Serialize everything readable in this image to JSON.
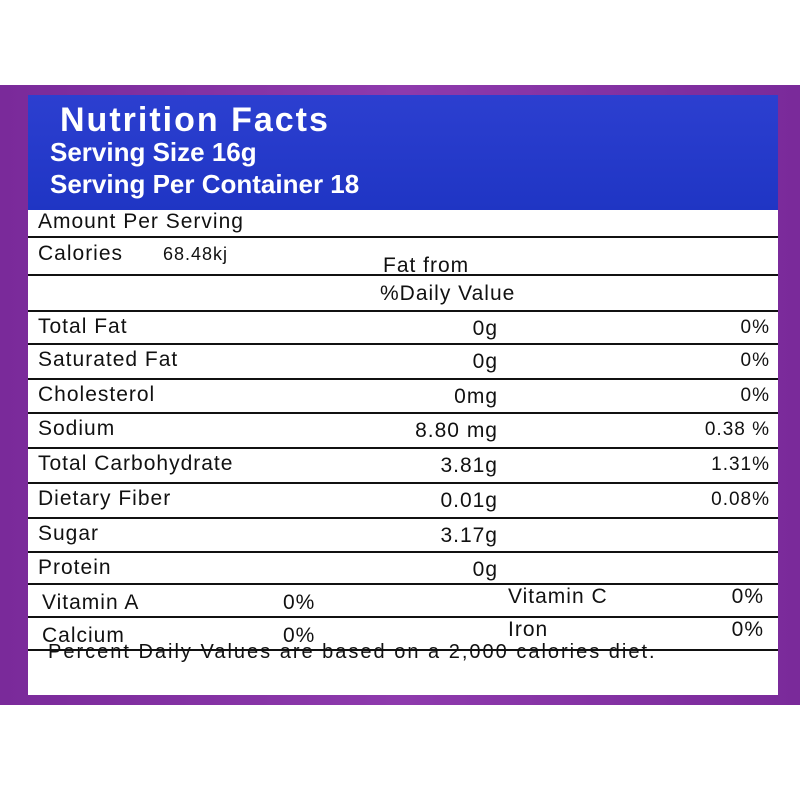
{
  "header": {
    "title": "Nutrition Facts",
    "serving_size": "Serving Size 16g",
    "servings": "Serving Per Container 18"
  },
  "amount_per_serving": "Amount Per Serving",
  "calories": {
    "label": "Calories",
    "value": "68.48kj",
    "fat_from": "Fat from"
  },
  "daily_value_header": "%Daily Value",
  "nutrients": [
    [
      "Total Fat",
      "0g",
      "0%"
    ],
    [
      "Saturated Fat",
      "0g",
      "0%"
    ],
    [
      "Cholesterol",
      "0mg",
      "0%"
    ],
    [
      "Sodium",
      "8.80 mg",
      "0.38 %"
    ],
    [
      "Total Carbohydrate",
      "3.81g",
      "1.31%"
    ],
    [
      "Dietary Fiber",
      "0.01g",
      "0.08%"
    ],
    [
      "Sugar",
      "3.17g"
    ],
    [
      "Protein",
      "0g"
    ]
  ],
  "vitamins": [
    [
      "Vitamin A",
      "0%",
      "Vitamin C",
      "0%"
    ],
    [
      "Calcium",
      "0%",
      "Iron",
      "0%"
    ]
  ],
  "footnote": "Percent Daily Values are based on a 2,000 calories diet."
}
